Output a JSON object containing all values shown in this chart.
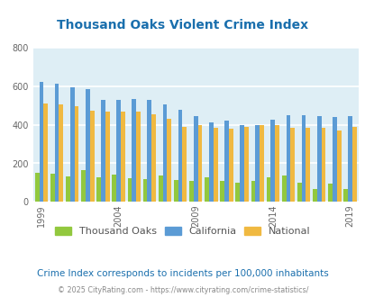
{
  "title": "Thousand Oaks Violent Crime Index",
  "subtitle": "Crime Index corresponds to incidents per 100,000 inhabitants",
  "footer": "© 2025 CityRating.com - https://www.cityrating.com/crime-statistics/",
  "years": [
    1999,
    2000,
    2001,
    2002,
    2003,
    2004,
    2005,
    2006,
    2007,
    2008,
    2009,
    2010,
    2011,
    2012,
    2013,
    2014,
    2015,
    2016,
    2017,
    2018,
    2019
  ],
  "thousand_oaks": [
    152,
    148,
    131,
    163,
    130,
    141,
    122,
    120,
    135,
    113,
    109,
    126,
    109,
    100,
    107,
    127,
    136,
    100,
    65,
    97,
    65
  ],
  "california": [
    622,
    614,
    594,
    584,
    531,
    527,
    534,
    527,
    506,
    477,
    447,
    411,
    421,
    399,
    400,
    426,
    449,
    449,
    447,
    442,
    444
  ],
  "national": [
    508,
    506,
    498,
    474,
    466,
    466,
    470,
    456,
    430,
    388,
    397,
    383,
    380,
    387,
    397,
    398,
    383,
    383,
    382,
    369,
    388
  ],
  "ylim": [
    0,
    800
  ],
  "yticks": [
    0,
    200,
    400,
    600,
    800
  ],
  "xtick_years": [
    1999,
    2004,
    2009,
    2014,
    2019
  ],
  "bg_color": "#deeef5",
  "color_ca": "#5b9bd5",
  "color_national": "#f0b941",
  "color_to_green": "#92c83e",
  "title_color": "#1a6fad",
  "subtitle_color": "#1a6fad",
  "footer_color": "#888888",
  "grid_color": "#ffffff",
  "legend_label_color": "#555555"
}
